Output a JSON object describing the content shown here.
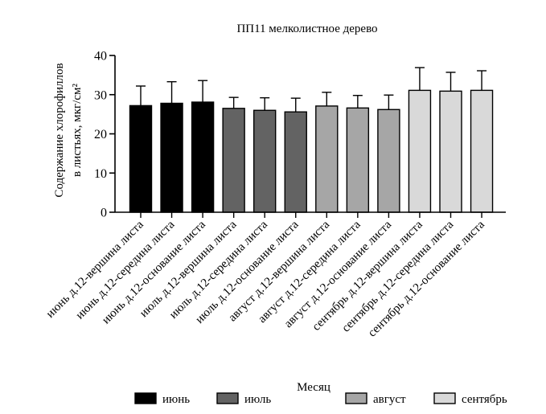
{
  "chart_data": {
    "type": "bar",
    "title": "ПП11 мелколистное дерево",
    "xlabel": "Месяц",
    "ylabel_lines": [
      "Содержание хлорофиллов",
      "в листьях, мкг/см²"
    ],
    "ylim": [
      0,
      40
    ],
    "yticks": [
      0,
      10,
      20,
      30,
      40
    ],
    "categories": [
      "июнь д.12-вершина листа",
      "июнь д.12-середина листа",
      "июнь д.12-основание листа",
      "июль д.12-вершина листа",
      "июль д.12-середина листа",
      "июль д.12-основание листа",
      "август д.12-вершина листа",
      "август д.12-середина листа",
      "август д.12-основание листа",
      "сентябрь д.12-вершина листа",
      "сентябрь д.12-середина листа",
      "сентябрь д.12-основание листа"
    ],
    "values": [
      27.2,
      27.8,
      28.1,
      26.5,
      26.0,
      25.6,
      27.1,
      26.6,
      26.2,
      31.1,
      30.9,
      31.1
    ],
    "errors": [
      5.0,
      5.5,
      5.5,
      2.8,
      3.2,
      3.5,
      3.5,
      3.2,
      3.7,
      5.8,
      4.8,
      5.0
    ],
    "groups": [
      0,
      0,
      0,
      1,
      1,
      1,
      2,
      2,
      2,
      3,
      3,
      3
    ],
    "legend": [
      {
        "label": "июнь",
        "color": "#000000"
      },
      {
        "label": "июль",
        "color": "#636363"
      },
      {
        "label": "август",
        "color": "#a6a6a6"
      },
      {
        "label": "сентябрь",
        "color": "#d9d9d9"
      }
    ],
    "legend_position": "bottom"
  }
}
